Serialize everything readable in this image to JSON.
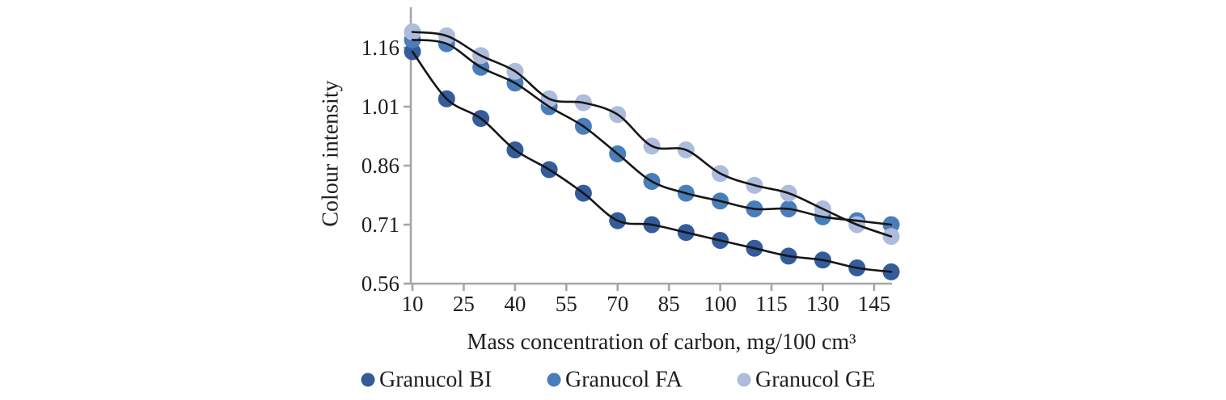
{
  "chart_data": {
    "type": "scatter",
    "title": "",
    "xlabel": "Mass concentration of carbon, mg/100 cm³",
    "ylabel": "Colour intensity",
    "x": [
      10,
      20,
      30,
      40,
      50,
      60,
      70,
      80,
      90,
      100,
      110,
      120,
      130,
      140,
      150
    ],
    "series": [
      {
        "name": "Granucol BI",
        "color": "#345c9b",
        "values": [
          1.15,
          1.03,
          0.98,
          0.9,
          0.85,
          0.79,
          0.72,
          0.71,
          0.69,
          0.67,
          0.65,
          0.63,
          0.62,
          0.6,
          0.59
        ]
      },
      {
        "name": "Granucol FA",
        "color": "#4a7ebb",
        "values": [
          1.18,
          1.17,
          1.11,
          1.07,
          1.01,
          0.96,
          0.89,
          0.82,
          0.79,
          0.77,
          0.75,
          0.75,
          0.73,
          0.72,
          0.71
        ]
      },
      {
        "name": "Granucol GE",
        "color": "#aebcdc",
        "values": [
          1.2,
          1.19,
          1.14,
          1.1,
          1.03,
          1.02,
          0.99,
          0.91,
          0.9,
          0.84,
          0.81,
          0.79,
          0.75,
          0.71,
          0.68
        ]
      }
    ],
    "trendlines": true,
    "trendline_color": "#161616",
    "x_ticks": [
      10,
      25,
      40,
      55,
      70,
      85,
      100,
      115,
      130,
      145
    ],
    "y_ticks": [
      "0.56",
      "0.71",
      "0.86",
      "1.01",
      "1.16"
    ],
    "x_range": [
      10,
      150
    ],
    "y_range": [
      0.56,
      1.26
    ],
    "grid": false,
    "axis_color": "#a6a6a6",
    "legend_position": "bottom",
    "legend_marker": "circle"
  }
}
